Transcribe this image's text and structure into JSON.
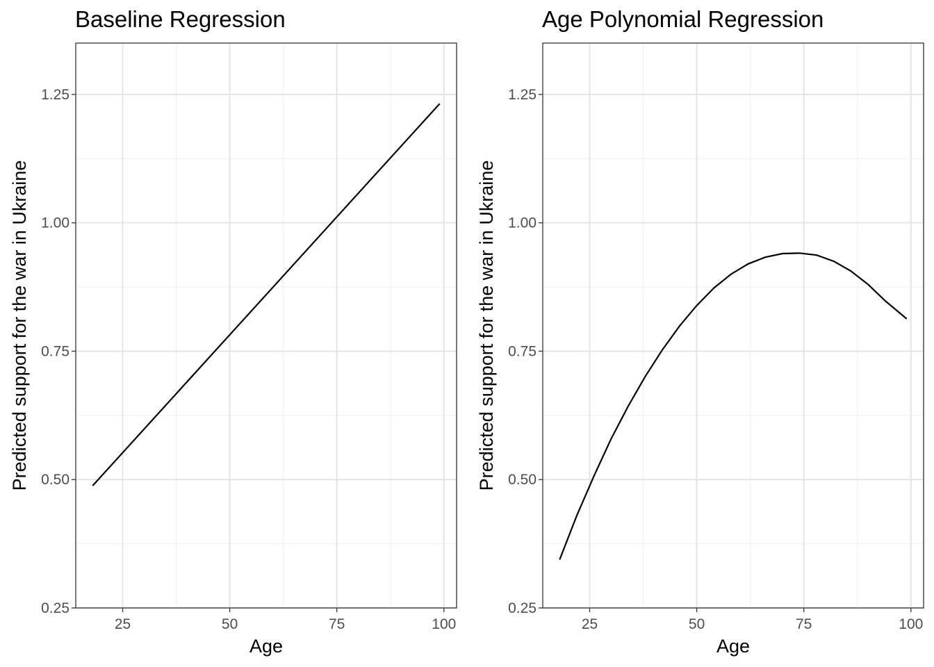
{
  "chart_data": [
    {
      "type": "line",
      "title": "Baseline Regression",
      "xlabel": "Age",
      "ylabel": "Predicted support for the war in Ukraine",
      "xlim": [
        14.05,
        102.95
      ],
      "ylim": [
        0.25,
        1.35
      ],
      "x_ticks": [
        25,
        50,
        75,
        100
      ],
      "x_tick_labels": [
        "25",
        "50",
        "75",
        "100"
      ],
      "y_ticks": [
        0.25,
        0.5,
        0.75,
        1.0,
        1.25
      ],
      "y_tick_labels": [
        "0.25",
        "0.50",
        "0.75",
        "1.00",
        "1.25"
      ],
      "grid": true,
      "legend": "none",
      "series": [
        {
          "x": [
            18,
            99
          ],
          "y": [
            0.488,
            1.232
          ]
        }
      ]
    },
    {
      "type": "line",
      "title": "Age Polynomial Regression",
      "xlabel": "Age",
      "ylabel": "Predicted support for the war in Ukraine",
      "xlim": [
        14.05,
        102.95
      ],
      "ylim": [
        0.25,
        1.35
      ],
      "x_ticks": [
        25,
        50,
        75,
        100
      ],
      "x_tick_labels": [
        "25",
        "50",
        "75",
        "100"
      ],
      "y_ticks": [
        0.25,
        0.5,
        0.75,
        1.0,
        1.25
      ],
      "y_tick_labels": [
        "0.25",
        "0.50",
        "0.75",
        "1.00",
        "1.25"
      ],
      "grid": true,
      "legend": "none",
      "series": [
        {
          "x": [
            18,
            22,
            26,
            30,
            34,
            38,
            42,
            46,
            50,
            54,
            58,
            62,
            66,
            70,
            74,
            78,
            82,
            86,
            90,
            94,
            99
          ],
          "y": [
            0.344,
            0.43,
            0.507,
            0.579,
            0.643,
            0.701,
            0.753,
            0.799,
            0.839,
            0.873,
            0.9,
            0.92,
            0.933,
            0.94,
            0.941,
            0.937,
            0.925,
            0.906,
            0.88,
            0.848,
            0.813
          ]
        }
      ]
    }
  ]
}
